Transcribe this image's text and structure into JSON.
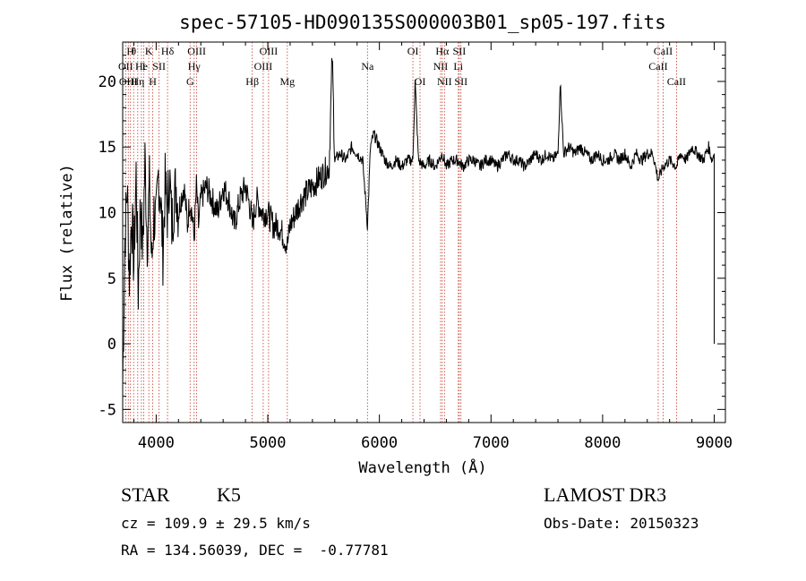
{
  "chart_data": {
    "type": "line",
    "title": "spec-57105-HD090135S000003B01_sp05-197.fits",
    "xlabel": "Wavelength (Å)",
    "ylabel": "Flux (relative)",
    "xlim": [
      3700,
      9100
    ],
    "ylim": [
      -6,
      23
    ],
    "x_ticks": [
      4000,
      5000,
      6000,
      7000,
      8000,
      9000
    ],
    "y_ticks": [
      -5,
      0,
      5,
      10,
      15,
      20
    ],
    "grid": false,
    "series": [
      {
        "name": "flux",
        "x": [
          3700,
          3720,
          3740,
          3760,
          3780,
          3800,
          3820,
          3840,
          3860,
          3880,
          3900,
          3920,
          3940,
          3960,
          3980,
          4000,
          4020,
          4040,
          4060,
          4080,
          4100,
          4120,
          4140,
          4160,
          4180,
          4200,
          4220,
          4250,
          4280,
          4300,
          4320,
          4340,
          4360,
          4380,
          4400,
          4450,
          4500,
          4550,
          4600,
          4650,
          4700,
          4750,
          4800,
          4850,
          4861,
          4900,
          4950,
          5000,
          5050,
          5100,
          5150,
          5175,
          5200,
          5250,
          5300,
          5350,
          5400,
          5450,
          5500,
          5550,
          5577,
          5600,
          5650,
          5700,
          5750,
          5800,
          5850,
          5893,
          5920,
          5950,
          6000,
          6050,
          6100,
          6150,
          6200,
          6250,
          6300,
          6320,
          6350,
          6400,
          6450,
          6500,
          6563,
          6600,
          6650,
          6700,
          6750,
          6800,
          6850,
          6900,
          6950,
          7000,
          7050,
          7100,
          7150,
          7200,
          7250,
          7300,
          7350,
          7400,
          7450,
          7500,
          7550,
          7600,
          7620,
          7650,
          7700,
          7750,
          7800,
          7850,
          7900,
          7950,
          8000,
          8050,
          8100,
          8150,
          8200,
          8250,
          8300,
          8350,
          8400,
          8450,
          8498,
          8542,
          8600,
          8662,
          8700,
          8750,
          8800,
          8850,
          8900,
          8950,
          8980,
          9000
        ],
        "y": [
          -3,
          8,
          12,
          5,
          10,
          6,
          13,
          4,
          11,
          7,
          14,
          8,
          12,
          6,
          10,
          9,
          13,
          11,
          7,
          12,
          10,
          13,
          9,
          11,
          12,
          10,
          11,
          12,
          9,
          11,
          10,
          8,
          12,
          9,
          11,
          12,
          11,
          10,
          12,
          11,
          9,
          11,
          12,
          10,
          9,
          11,
          10,
          10,
          9,
          9,
          8,
          7.5,
          9,
          10,
          11,
          11.5,
          12,
          12.5,
          13,
          13.5,
          22,
          14,
          14.5,
          14,
          15,
          14.5,
          14,
          9,
          15,
          16,
          15,
          14,
          13.5,
          14,
          13.5,
          14,
          14,
          20,
          14,
          13.5,
          14,
          13.5,
          14.5,
          13.5,
          14,
          14,
          13.5,
          14,
          14,
          13.5,
          14,
          14,
          13.5,
          14,
          14.5,
          14,
          14,
          13.5,
          14,
          14.5,
          14,
          14.5,
          14,
          14.5,
          20,
          14.5,
          15,
          14.5,
          15,
          14.5,
          14,
          14.5,
          14,
          14,
          14.5,
          14,
          14.5,
          13.5,
          14.5,
          14,
          14.5,
          14.5,
          12.5,
          13.5,
          14,
          13.5,
          14.5,
          14,
          15,
          14.5,
          14,
          15,
          14,
          14.5
        ]
      }
    ],
    "lines": [
      {
        "w": 3727,
        "label": "OII",
        "row": 2
      },
      {
        "w": 3750,
        "label": "OIII",
        "row": 3
      },
      {
        "w": 3770,
        "label": "H",
        "row": 1
      },
      {
        "w": 3798,
        "label": "θ",
        "row": 1
      },
      {
        "w": 3835,
        "label": "Hη",
        "row": 3
      },
      {
        "w": 3868,
        "label": "He",
        "row": 2
      },
      {
        "w": 3889,
        "label": "I",
        "row": 2
      },
      {
        "w": 3934,
        "label": "K",
        "row": 1
      },
      {
        "w": 3969,
        "label": "H",
        "row": 3
      },
      {
        "w": 4026,
        "label": "SII",
        "row": 2
      },
      {
        "w": 4102,
        "label": "Hδ",
        "row": 1
      },
      {
        "w": 4304,
        "label": "G",
        "row": 3
      },
      {
        "w": 4340,
        "label": "Hγ",
        "row": 2
      },
      {
        "w": 4363,
        "label": "OIII",
        "row": 1
      },
      {
        "w": 4861,
        "label": "Hβ",
        "row": 3
      },
      {
        "w": 4959,
        "label": "OIII",
        "row": 2
      },
      {
        "w": 5007,
        "label": "OIII",
        "row": 1
      },
      {
        "w": 5175,
        "label": "Mg",
        "row": 3
      },
      {
        "w": 5893,
        "label": "Na",
        "row": 2
      },
      {
        "w": 6300,
        "label": "OI",
        "row": 1
      },
      {
        "w": 6364,
        "label": "OI",
        "row": 3
      },
      {
        "w": 6548,
        "label": "NII",
        "row": 2
      },
      {
        "w": 6563,
        "label": "Hα",
        "row": 1
      },
      {
        "w": 6583,
        "label": "NII",
        "row": 3
      },
      {
        "w": 6707,
        "label": "Li",
        "row": 2
      },
      {
        "w": 6716,
        "label": "SII",
        "row": 1
      },
      {
        "w": 6731,
        "label": "SII",
        "row": 3
      },
      {
        "w": 8498,
        "label": "CaII",
        "row": 2
      },
      {
        "w": 8542,
        "label": "CaII",
        "row": 1
      },
      {
        "w": 8662,
        "label": "CaII",
        "row": 3
      }
    ]
  },
  "info": {
    "class": "STAR",
    "subclass": "K5",
    "survey": "LAMOST DR3",
    "cz": "cz = 109.9 ± 29.5 km/s",
    "obs_date": "Obs-Date: 20150323",
    "coords": "RA = 134.56039, DEC =  -0.77781"
  }
}
